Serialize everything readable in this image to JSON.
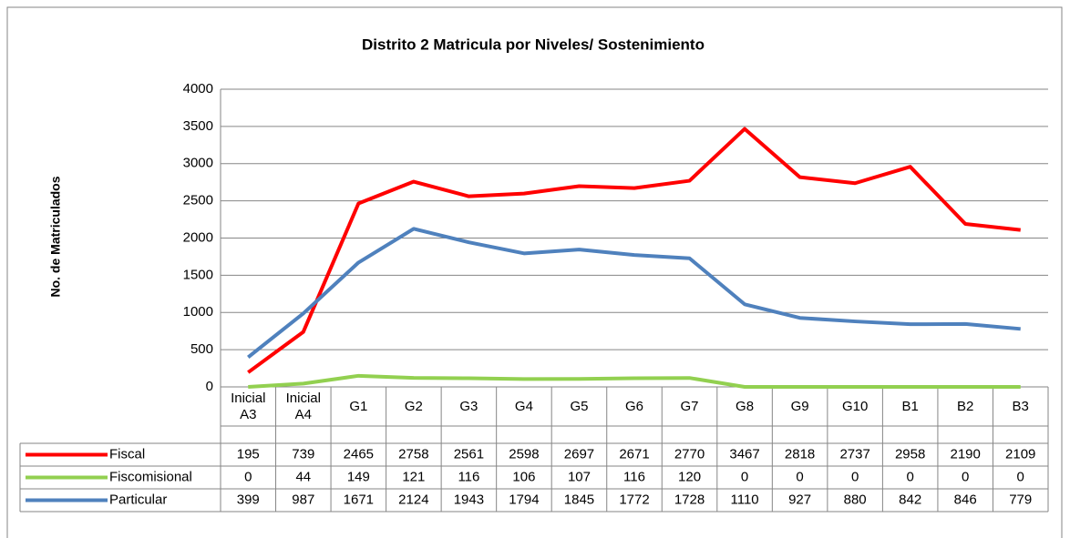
{
  "chart_data": {
    "type": "line",
    "title": "Distrito 2 Matricula por Niveles/ Sostenimiento",
    "y_label": "No. de Matriculados",
    "categories": [
      "Inicial A3",
      "Inicial A4",
      "G1",
      "G2",
      "G3",
      "G4",
      "G5",
      "G6",
      "G7",
      "G8",
      "G9",
      "G10",
      "B1",
      "B2",
      "B3"
    ],
    "series": [
      {
        "name": "Fiscal",
        "color": "#ff0000",
        "values": [
          195,
          739,
          2465,
          2758,
          2561,
          2598,
          2697,
          2671,
          2770,
          3467,
          2818,
          2737,
          2958,
          2190,
          2109
        ]
      },
      {
        "name": "Fiscomisional",
        "color": "#92d050",
        "values": [
          0,
          44,
          149,
          121,
          116,
          106,
          107,
          116,
          120,
          0,
          0,
          0,
          0,
          0,
          0
        ]
      },
      {
        "name": "Particular",
        "color": "#4f81bd",
        "values": [
          399,
          987,
          1671,
          2124,
          1943,
          1794,
          1845,
          1772,
          1728,
          1110,
          927,
          880,
          842,
          846,
          779
        ]
      }
    ],
    "ylim": [
      0,
      4000
    ],
    "yticks": [
      0,
      500,
      1000,
      1500,
      2000,
      2500,
      3000,
      3500,
      4000
    ],
    "grid": true
  }
}
